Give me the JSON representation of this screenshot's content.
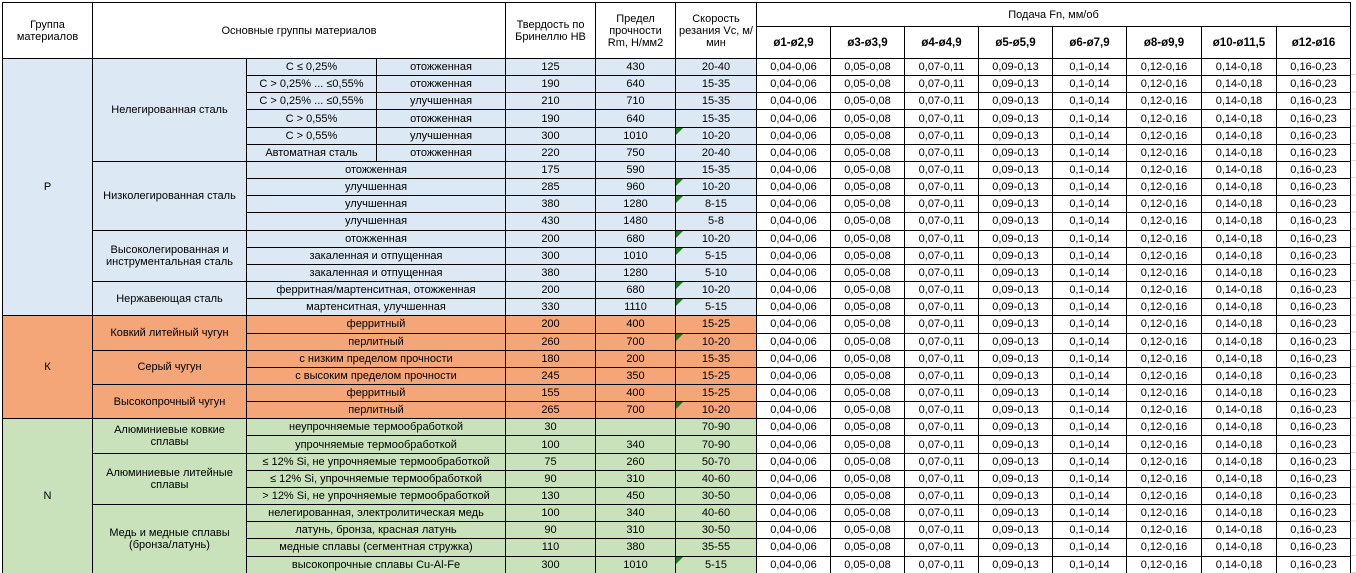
{
  "colors": {
    "group_p": "#DCE8F3",
    "group_k": "#F4A678",
    "group_n": "#C9E2BB",
    "grid": "#000000",
    "error_indicator": "#1F7A1F"
  },
  "feed_values": [
    "0,04-0,06",
    "0,05-0,08",
    "0,07-0,11",
    "0,09-0,13",
    "0,1-0,14",
    "0,12-0,16",
    "0,14-0,18",
    "0,16-0,23"
  ],
  "table": {
    "header": {
      "col_group": "Группа материалов",
      "col_main_groups": "Основные группы материалов",
      "col_hardness": "Твердость по Бринеллю HB",
      "col_strength": "Предел прочности Rm, Н/мм2",
      "col_speed": "Скорость резания Vc, м/мин",
      "feed_title": "Подача Fn, мм/об",
      "feed_columns": [
        "ø1-ø2,9",
        "ø3-ø3,9",
        "ø4-ø4,9",
        "ø5-ø5,9",
        "ø6-ø7,9",
        "ø8-ø9,9",
        "ø10-ø11,5",
        "ø12-ø16"
      ]
    },
    "groups": [
      {
        "code": "P",
        "subgroups": [
          {
            "name": "Нелегированная сталь",
            "rows": [
              {
                "spec": "C ≤ 0,25%",
                "state": "отожженная",
                "hb": "125",
                "rm": "430",
                "vc": "20-40",
                "mark": false
              },
              {
                "spec": "C > 0,25% ... ≤0,55%",
                "state": "отожженная",
                "hb": "190",
                "rm": "640",
                "vc": "15-35",
                "mark": false
              },
              {
                "spec": "C > 0,25% ... ≤0,55%",
                "state": "улучшенная",
                "hb": "210",
                "rm": "710",
                "vc": "15-35",
                "mark": false
              },
              {
                "spec": "C > 0,55%",
                "state": "отожженная",
                "hb": "190",
                "rm": "640",
                "vc": "15-35",
                "mark": false
              },
              {
                "spec": "C > 0,55%",
                "state": "улучшенная",
                "hb": "300",
                "rm": "1010",
                "vc": "10-20",
                "mark": true
              },
              {
                "spec": "Автоматная сталь",
                "state": "отожженная",
                "hb": "220",
                "rm": "750",
                "vc": "20-40",
                "mark": false
              }
            ]
          },
          {
            "name": "Низколегированная сталь",
            "rows": [
              {
                "spec": "отожженная",
                "hb": "175",
                "rm": "590",
                "vc": "15-35",
                "mark": false
              },
              {
                "spec": "улучшенная",
                "hb": "285",
                "rm": "960",
                "vc": "10-20",
                "mark": true
              },
              {
                "spec": "улучшенная",
                "hb": "380",
                "rm": "1280",
                "vc": "8-15",
                "mark": true
              },
              {
                "spec": "улучшенная",
                "hb": "430",
                "rm": "1480",
                "vc": "5-8",
                "mark": false
              }
            ]
          },
          {
            "name": "Высоколегированная и инструментальная сталь",
            "rows": [
              {
                "spec": "отожженная",
                "hb": "200",
                "rm": "680",
                "vc": "10-20",
                "mark": true
              },
              {
                "spec": "закаленная и отпущенная",
                "hb": "300",
                "rm": "1010",
                "vc": "5-15",
                "mark": true
              },
              {
                "spec": "закаленная и отпущенная",
                "hb": "380",
                "rm": "1280",
                "vc": "5-10",
                "mark": false
              }
            ]
          },
          {
            "name": "Нержавеющая сталь",
            "rows": [
              {
                "spec": "ферритная/мартенситная, отожженная",
                "hb": "200",
                "rm": "680",
                "vc": "10-20",
                "mark": true
              },
              {
                "spec": "мартенситная, улучшенная",
                "hb": "330",
                "rm": "1110",
                "vc": "5-15",
                "mark": true
              }
            ]
          }
        ]
      },
      {
        "code": "К",
        "subgroups": [
          {
            "name": "Ковкий литейный чугун",
            "rows": [
              {
                "spec": "ферритный",
                "hb": "200",
                "rm": "400",
                "vc": "15-25",
                "mark": false
              },
              {
                "spec": "перлитный",
                "hb": "260",
                "rm": "700",
                "vc": "10-20",
                "mark": true
              }
            ]
          },
          {
            "name": "Серый чугун",
            "rows": [
              {
                "spec": "с низким пределом прочности",
                "hb": "180",
                "rm": "200",
                "vc": "15-35",
                "mark": false
              },
              {
                "spec": "с высоким пределом прочности",
                "hb": "245",
                "rm": "350",
                "vc": "15-25",
                "mark": false
              }
            ]
          },
          {
            "name": "Высокопрочный чугун",
            "rows": [
              {
                "spec": "ферритный",
                "hb": "155",
                "rm": "400",
                "vc": "15-25",
                "mark": false
              },
              {
                "spec": "перлитный",
                "hb": "265",
                "rm": "700",
                "vc": "10-20",
                "mark": true
              }
            ]
          }
        ]
      },
      {
        "code": "N",
        "subgroups": [
          {
            "name": "Алюминиевые ковкие сплавы",
            "rows": [
              {
                "spec": "неупрочняемые термообработкой",
                "hb": "30",
                "rm": "",
                "vc": "70-90",
                "mark": false
              },
              {
                "spec": "упрочняемые термообработкой",
                "hb": "100",
                "rm": "340",
                "vc": "70-90",
                "mark": false
              }
            ]
          },
          {
            "name": "Алюминиевые литейные сплавы",
            "rows": [
              {
                "spec": "≤ 12% Si, не упрочняемые термообработкой",
                "hb": "75",
                "rm": "260",
                "vc": "50-70",
                "mark": false
              },
              {
                "spec": "≤ 12% Si, упрочняемые термообработкой",
                "hb": "90",
                "rm": "310",
                "vc": "40-60",
                "mark": false
              },
              {
                "spec": "> 12% Si, не упрочняемые термообработкой",
                "hb": "130",
                "rm": "450",
                "vc": "30-50",
                "mark": false
              }
            ]
          },
          {
            "name": "Медь и медные сплавы (бронза/латунь)",
            "rows": [
              {
                "spec": "нелегированная, электролитическая медь",
                "hb": "100",
                "rm": "340",
                "vc": "40-60",
                "mark": false
              },
              {
                "spec": "латунь, бронза, красная латунь",
                "hb": "90",
                "rm": "310",
                "vc": "30-50",
                "mark": false
              },
              {
                "spec": "медные сплавы (сегментная стружка)",
                "hb": "110",
                "rm": "380",
                "vc": "35-55",
                "mark": false
              },
              {
                "spec": "высокопрочные сплавы Cu-Al-Fe",
                "hb": "300",
                "rm": "1010",
                "vc": "5-15",
                "mark": true
              }
            ]
          }
        ]
      }
    ]
  }
}
